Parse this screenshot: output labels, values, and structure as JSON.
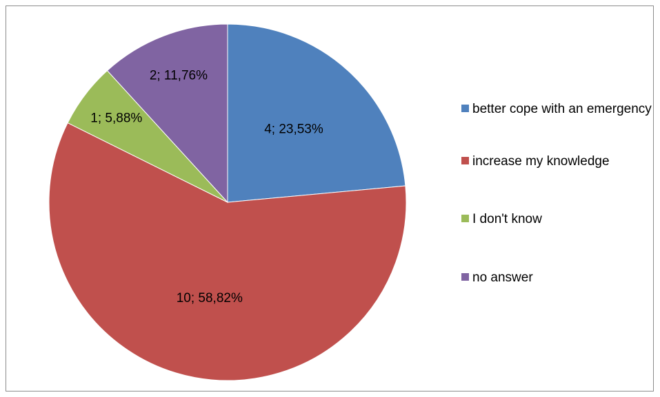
{
  "chart_data": {
    "type": "pie",
    "title": "",
    "start_angle_deg": 0,
    "direction": "clockwise",
    "legend_position": "right",
    "series": [
      {
        "slices": [
          {
            "category": "better cope with an emergency",
            "value": 4,
            "percent": "23,53%",
            "label": "4; 23,53%",
            "color": "#4F81BD"
          },
          {
            "category": "increase my knowledge",
            "value": 10,
            "percent": "58,82%",
            "label": "10; 58,82%",
            "color": "#C0504D"
          },
          {
            "category": "I don't know",
            "value": 1,
            "percent": "5,88%",
            "label": "1; 5,88%",
            "color": "#9BBB59"
          },
          {
            "category": "no answer",
            "value": 2,
            "percent": "11,76%",
            "label": "2; 11,76%",
            "color": "#8064A2"
          }
        ]
      }
    ]
  }
}
